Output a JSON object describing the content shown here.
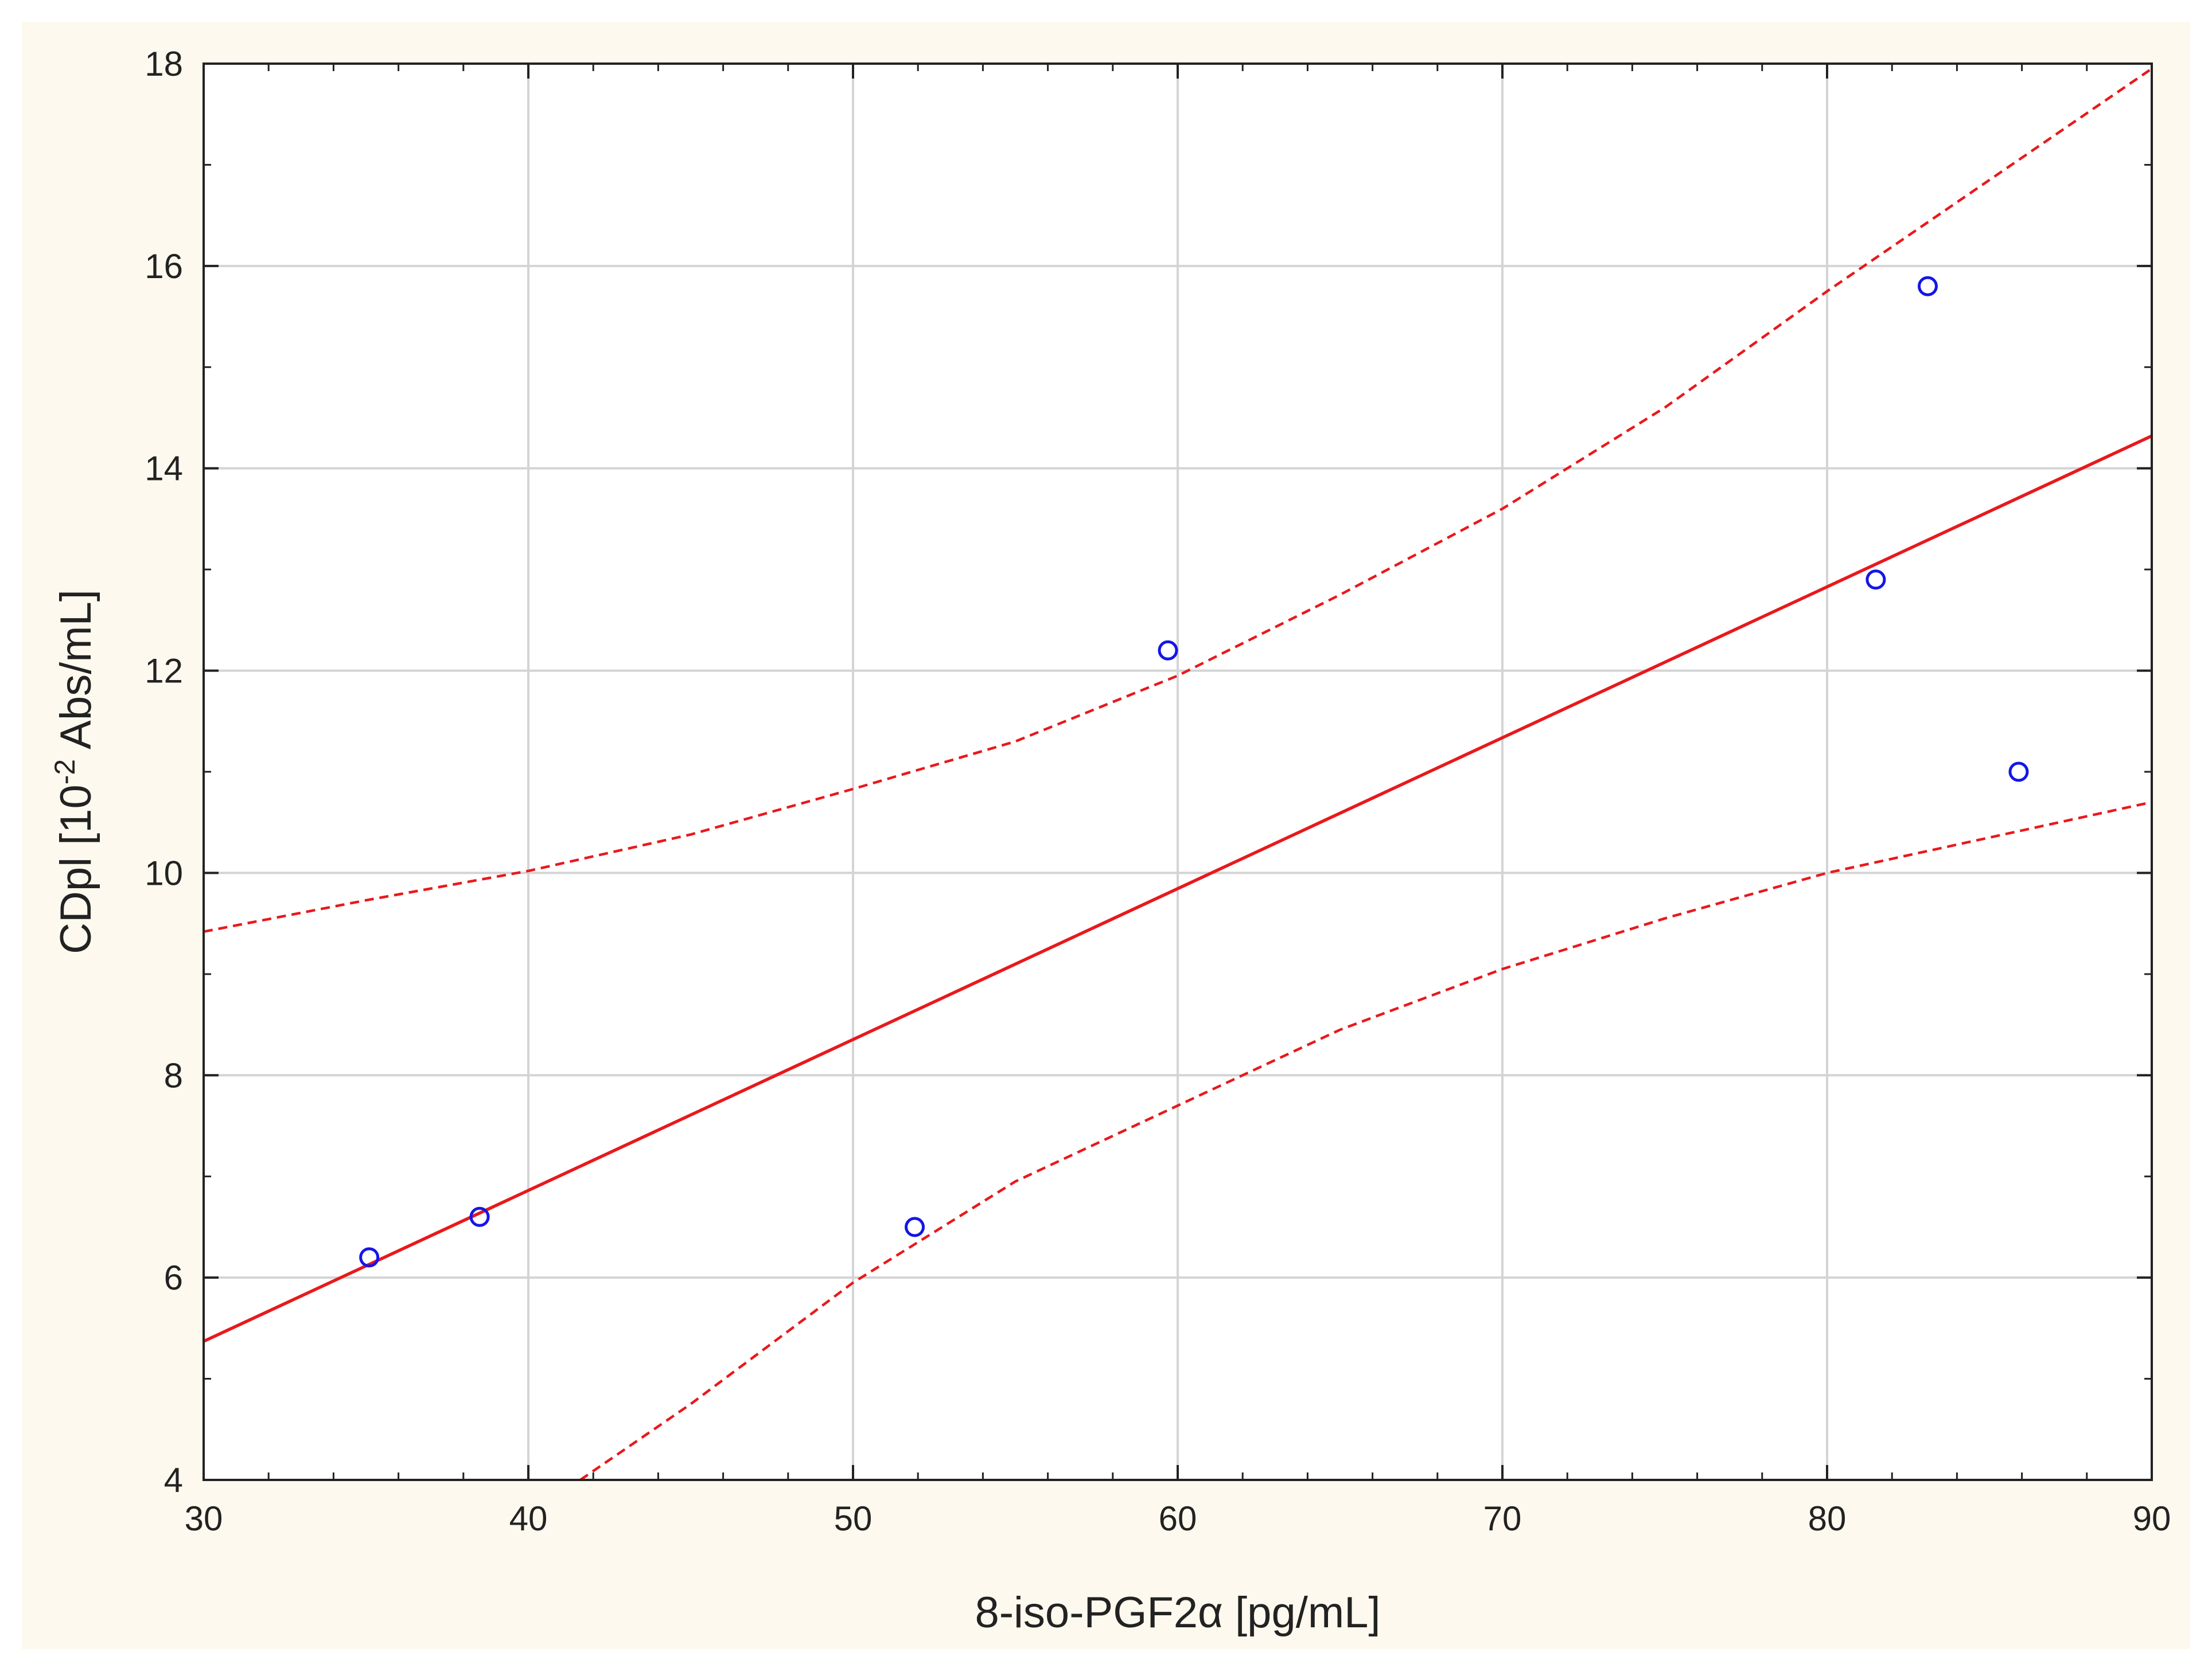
{
  "chart_data": {
    "type": "scatter",
    "xlabel": "8-iso-PGF2α [pg/mL]",
    "ylabel": {
      "prefix": "CDpl [10",
      "superscript": "-2",
      "suffix": " Abs/mL]"
    },
    "xlim": [
      30,
      90
    ],
    "ylim": [
      4,
      18
    ],
    "x_ticks": [
      30,
      40,
      50,
      60,
      70,
      80,
      90
    ],
    "y_ticks": [
      4,
      6,
      8,
      10,
      12,
      14,
      16,
      18
    ],
    "x_tick_labels": [
      "30",
      "40",
      "50",
      "60",
      "70",
      "80",
      "90"
    ],
    "y_tick_labels": [
      "4",
      "6",
      "8",
      "10",
      "12",
      "14",
      "16",
      "18"
    ],
    "grid": true,
    "points": [
      {
        "x": 35.1,
        "y": 6.2
      },
      {
        "x": 38.5,
        "y": 6.6
      },
      {
        "x": 51.9,
        "y": 6.5
      },
      {
        "x": 59.7,
        "y": 12.2
      },
      {
        "x": 81.5,
        "y": 12.9
      },
      {
        "x": 83.1,
        "y": 15.8
      },
      {
        "x": 85.9,
        "y": 11.0
      }
    ],
    "regression_line": {
      "x": [
        30,
        90
      ],
      "y": [
        5.37,
        14.32
      ]
    },
    "confidence_upper": {
      "x": [
        30,
        35,
        40,
        45,
        50,
        55,
        60,
        65,
        70,
        75,
        80,
        85,
        90
      ],
      "y": [
        9.42,
        9.73,
        10.02,
        10.38,
        10.83,
        11.3,
        11.95,
        12.75,
        13.6,
        14.6,
        15.75,
        16.85,
        17.95
      ]
    },
    "confidence_lower": {
      "x": [
        41.6,
        45,
        50,
        55,
        60,
        65,
        70,
        75,
        80,
        85,
        90
      ],
      "y": [
        4.0,
        4.75,
        5.95,
        6.95,
        7.7,
        8.45,
        9.05,
        9.55,
        10.0,
        10.35,
        10.7
      ]
    },
    "colors": {
      "points": "#1515e8",
      "regression": "#e8191c",
      "grid": "#d4d4d4",
      "axis": "#222222",
      "background": "#fdf9ee",
      "plot_background": "#ffffff"
    }
  }
}
